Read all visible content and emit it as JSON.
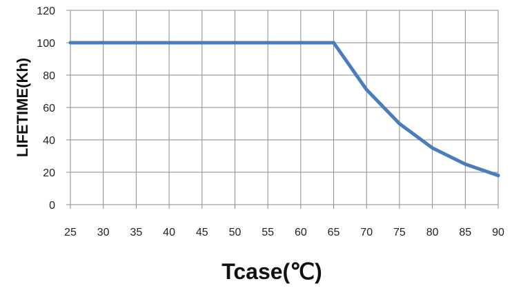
{
  "chart_data": {
    "type": "line",
    "title": "",
    "xlabel": "Tcase(℃)",
    "ylabel": "LIFETIME(Kh)",
    "xlim": [
      25,
      90
    ],
    "ylim": [
      0,
      120
    ],
    "x_ticks": [
      "25",
      "30",
      "35",
      "40",
      "45",
      "50",
      "55",
      "60",
      "65",
      "70",
      "75",
      "80",
      "85",
      "90"
    ],
    "y_ticks": [
      "0",
      "20",
      "40",
      "60",
      "80",
      "100",
      "120"
    ],
    "grid": true,
    "legend": "none",
    "series": [
      {
        "color": "#4a7ebb",
        "x": [
          25,
          65,
          70,
          75,
          80,
          85,
          90
        ],
        "y": [
          100,
          100,
          71,
          50,
          35,
          25,
          18
        ]
      }
    ]
  }
}
